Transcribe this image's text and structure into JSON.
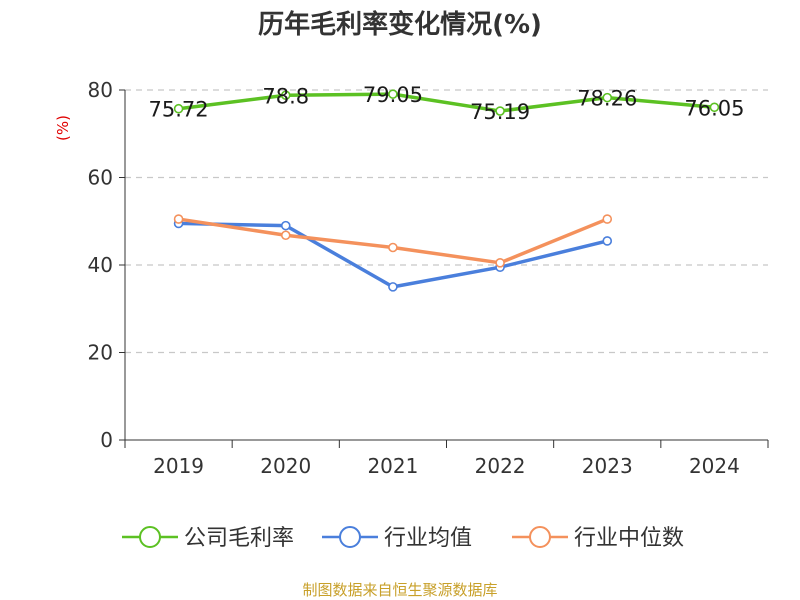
{
  "chart_data": {
    "type": "line",
    "title": "历年毛利率变化情况(%)",
    "ylabel": "(%)",
    "categories": [
      "2019",
      "2020",
      "2021",
      "2022",
      "2023",
      "2024"
    ],
    "ylim": [
      0,
      80
    ],
    "yticks": [
      0,
      20,
      40,
      60,
      80
    ],
    "grid": true,
    "legend_position": "bottom",
    "series": [
      {
        "name": "公司毛利率",
        "color": "#5cc123",
        "values": [
          75.72,
          78.8,
          79.05,
          75.19,
          78.26,
          76.05
        ],
        "labels": [
          "75.72",
          "78.8",
          "79.05",
          "75.19",
          "78.26",
          "76.05"
        ]
      },
      {
        "name": "行业均值",
        "color": "#4a7fdc",
        "values": [
          49.5,
          49.0,
          35.0,
          39.5,
          45.5,
          null
        ]
      },
      {
        "name": "行业中位数",
        "color": "#f4915c",
        "values": [
          50.5,
          46.8,
          44.0,
          40.5,
          50.5,
          null
        ]
      }
    ]
  },
  "footer": {
    "source": "制图数据来自恒生聚源数据库"
  }
}
